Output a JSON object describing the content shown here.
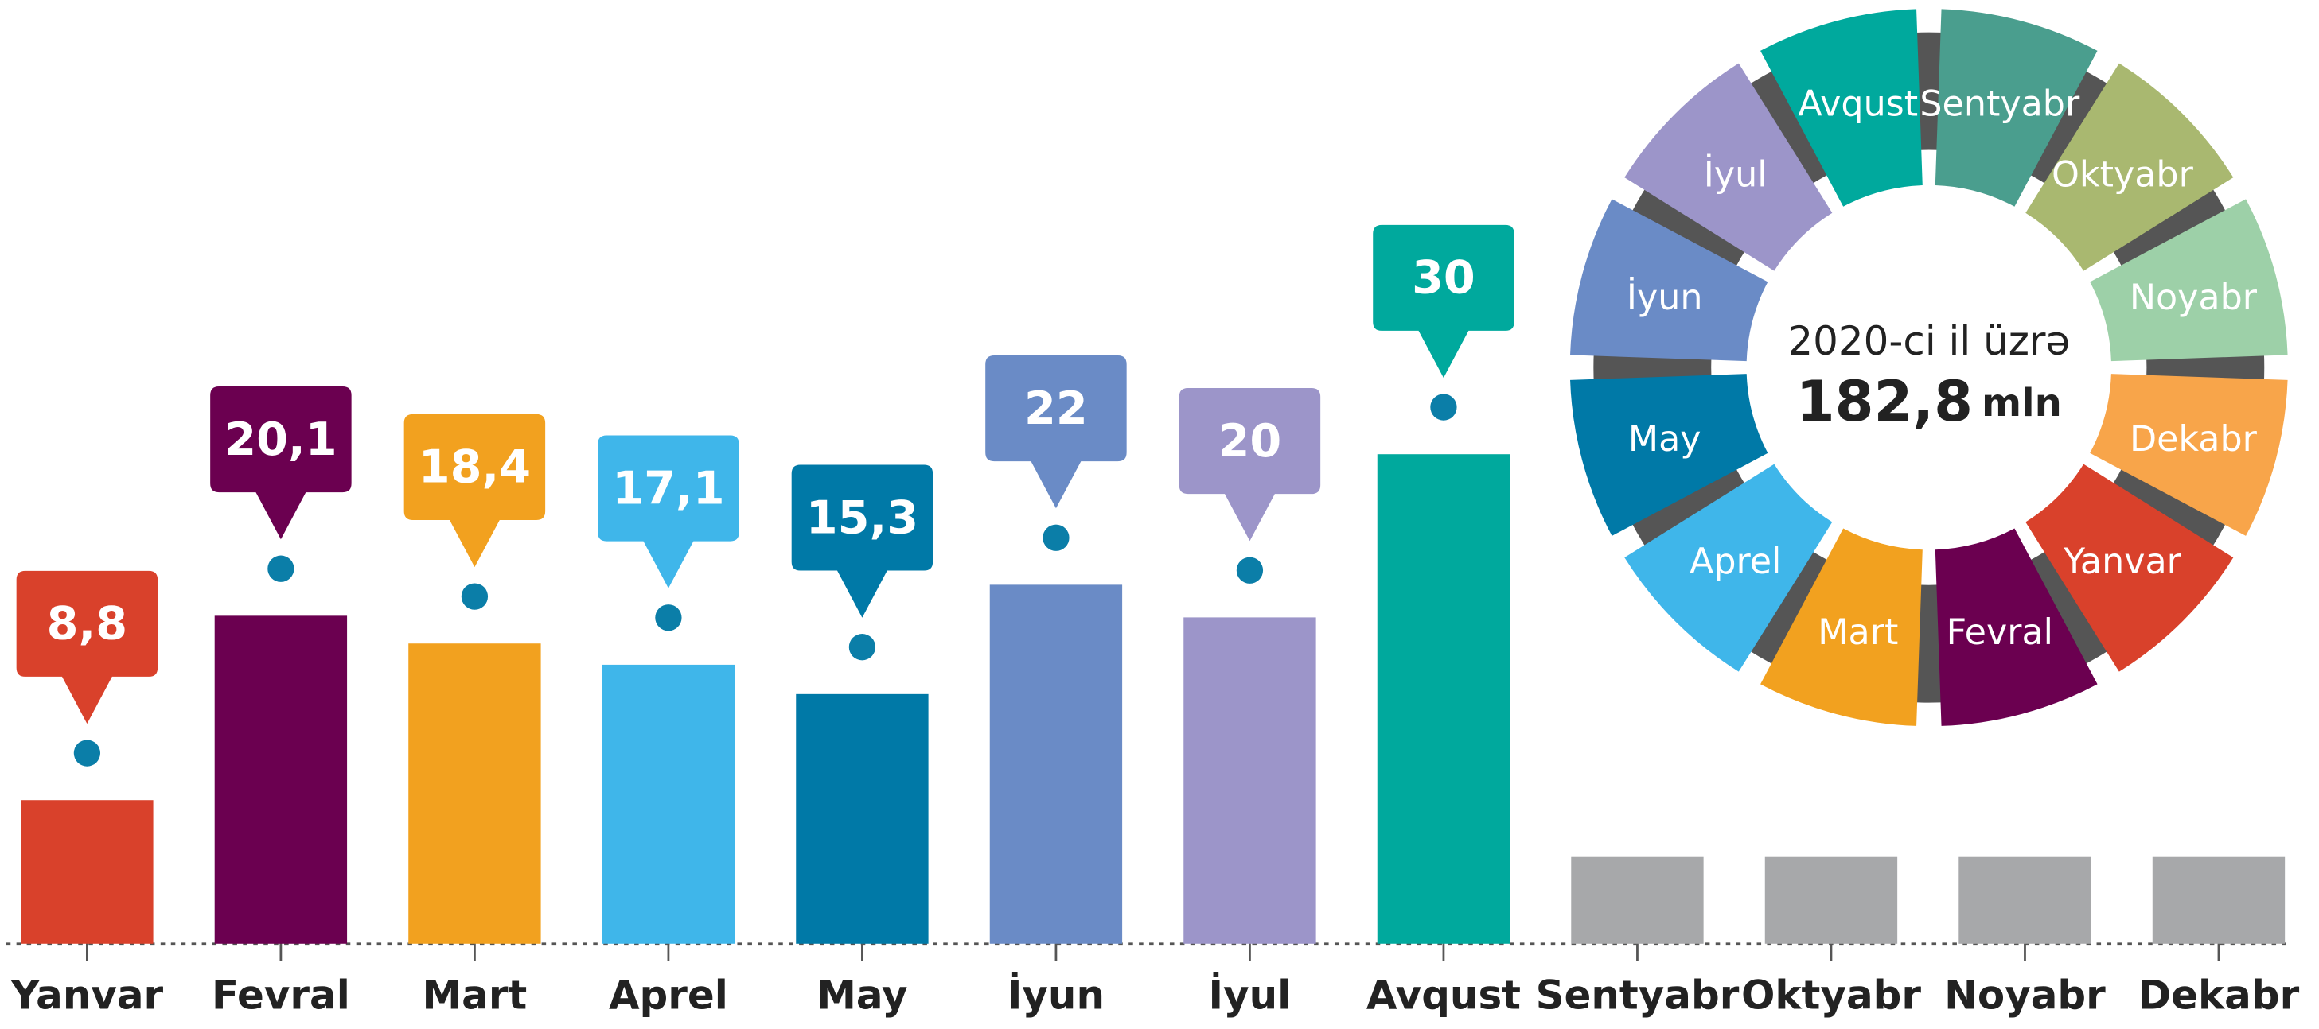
{
  "chart_data": {
    "type": "bar",
    "categories": [
      "Yanvar",
      "Fevral",
      "Mart",
      "Aprel",
      "May",
      "İyun",
      "İyul",
      "Avqust",
      "Sentyabr",
      "Oktyabr",
      "Noyabr",
      "Dekabr"
    ],
    "values": [
      8.8,
      20.1,
      18.4,
      17.1,
      15.3,
      22,
      20,
      30,
      null,
      null,
      null,
      null
    ],
    "value_labels": [
      "8,8",
      "20,1",
      "18,4",
      "17,1",
      "15,3",
      "22",
      "20",
      "30",
      null,
      null,
      null,
      null
    ],
    "colors": [
      "#d9412b",
      "#6b0050",
      "#f2a11f",
      "#3fb6ea",
      "#0079a7",
      "#6a8bc6",
      "#9c95c9",
      "#00a99d",
      "#4a9e8e",
      "#a9b870",
      "#9dd0a8",
      "#f8a54a"
    ],
    "placeholder_color": "#a7a8aa",
    "ring": {
      "caption": "2020-ci il üzrə",
      "total_label": "182,8",
      "unit": "mln"
    }
  }
}
